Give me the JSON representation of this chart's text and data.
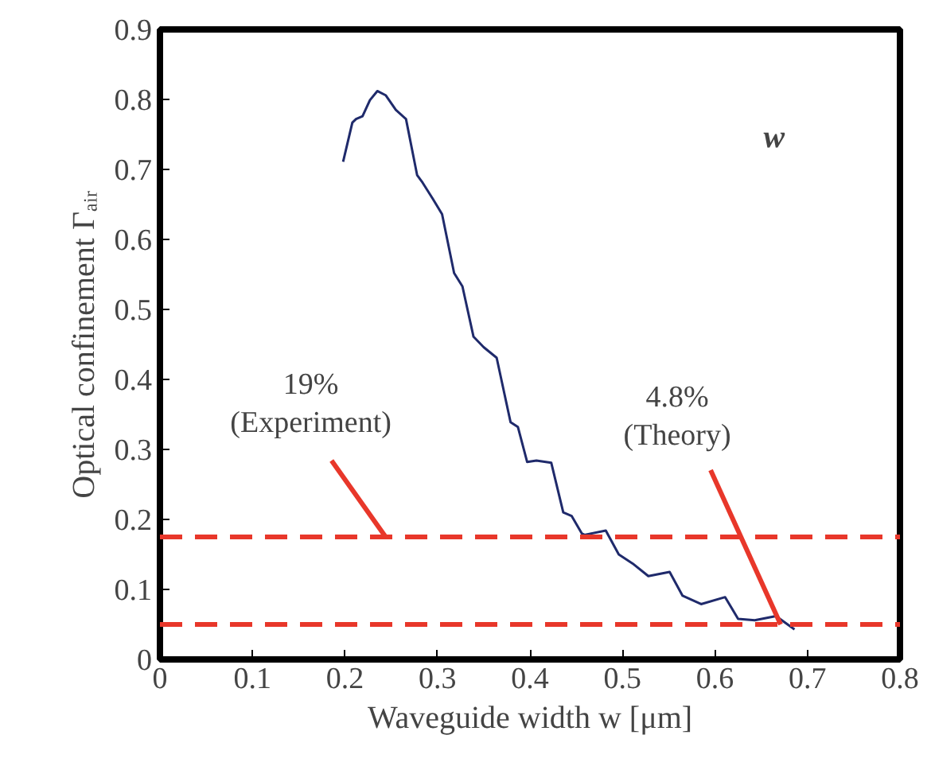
{
  "chart_data": {
    "type": "line",
    "xlabel": "Waveguide width w [μm]",
    "ylabel": "Optical confinement Γₐᵢᵣ",
    "x": [
      0.198,
      0.208,
      0.212,
      0.219,
      0.227,
      0.235,
      0.244,
      0.255,
      0.266,
      0.278,
      0.284,
      0.295,
      0.305,
      0.318,
      0.327,
      0.339,
      0.35,
      0.364,
      0.379,
      0.387,
      0.397,
      0.407,
      0.423,
      0.436,
      0.445,
      0.456,
      0.459,
      0.482,
      0.496,
      0.511,
      0.528,
      0.551,
      0.565,
      0.585,
      0.611,
      0.625,
      0.643,
      0.666,
      0.686
    ],
    "series": [
      {
        "color": "#1f2a6b",
        "values": [
          0.711,
          0.767,
          0.772,
          0.776,
          0.799,
          0.812,
          0.806,
          0.785,
          0.772,
          0.692,
          0.681,
          0.658,
          0.636,
          0.552,
          0.533,
          0.461,
          0.446,
          0.431,
          0.339,
          0.332,
          0.282,
          0.284,
          0.281,
          0.21,
          0.205,
          0.18,
          0.178,
          0.184,
          0.15,
          0.137,
          0.119,
          0.125,
          0.091,
          0.079,
          0.089,
          0.058,
          0.056,
          0.062,
          0.043
        ]
      }
    ],
    "xlim": [
      0,
      0.8
    ],
    "ylim": [
      0,
      0.9
    ],
    "xticks": [
      0,
      0.1,
      0.2,
      0.3,
      0.4,
      0.5,
      0.6,
      0.7,
      0.8
    ],
    "yticks": [
      0,
      0.1,
      0.2,
      0.3,
      0.4,
      0.5,
      0.6,
      0.7,
      0.8,
      0.9
    ],
    "ref_lines": [
      {
        "axis": "y",
        "value": 0.175,
        "color": "#e8372a",
        "line_style": "dashed"
      },
      {
        "axis": "y",
        "value": 0.05,
        "color": "#e8372a",
        "line_style": "dashed"
      }
    ],
    "annotations": [
      {
        "text": "19%\n(Experiment)",
        "x": 0.244,
        "y": 0.175
      },
      {
        "text": "4.8%\n(Theory)",
        "x": 0.671,
        "y": 0.05
      },
      "w"
    ],
    "grid": false,
    "line_style": "solid",
    "marker": "none"
  }
}
